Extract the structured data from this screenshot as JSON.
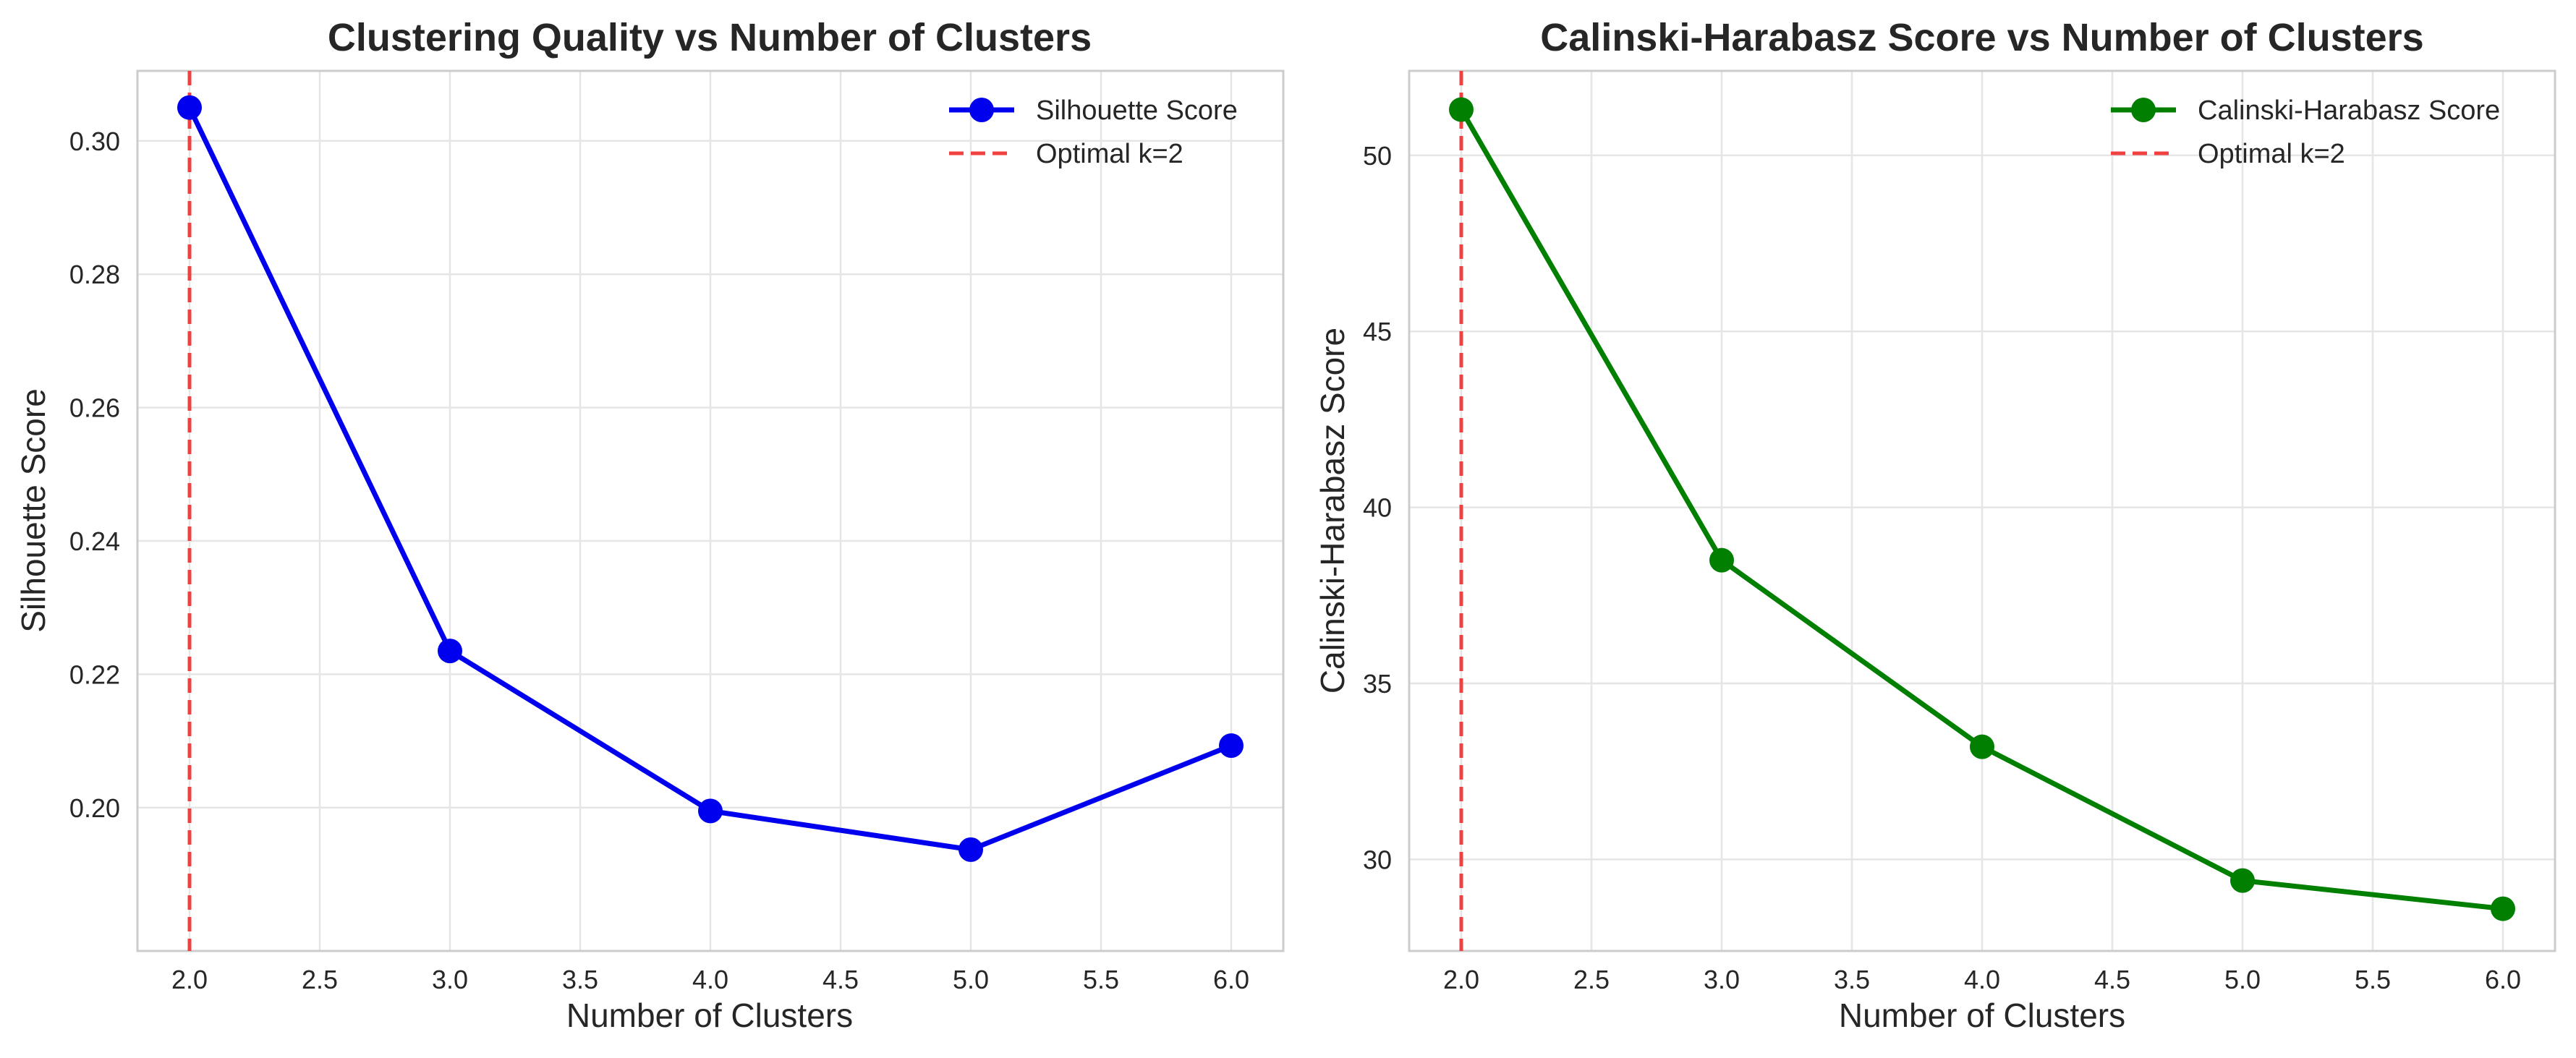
{
  "chart_data": [
    {
      "type": "line",
      "title": "Clustering Quality vs Number of Clusters",
      "xlabel": "Number of Clusters",
      "ylabel": "Silhouette Score",
      "x": [
        2,
        3,
        4,
        5,
        6
      ],
      "xlim": [
        1.8,
        6.2
      ],
      "ylim": [
        0.1785,
        0.3105
      ],
      "xticks": [
        2.0,
        2.5,
        3.0,
        3.5,
        4.0,
        4.5,
        5.0,
        5.5,
        6.0
      ],
      "xtick_labels": [
        "2.0",
        "2.5",
        "3.0",
        "3.5",
        "4.0",
        "4.5",
        "5.0",
        "5.5",
        "6.0"
      ],
      "yticks": [
        0.2,
        0.22,
        0.24,
        0.26,
        0.28,
        0.3
      ],
      "ytick_labels": [
        "0.20",
        "0.22",
        "0.24",
        "0.26",
        "0.28",
        "0.30"
      ],
      "grid": true,
      "legend_position": "top-right",
      "series": [
        {
          "name": "Silhouette Score",
          "values": [
            0.305,
            0.2235,
            0.1995,
            0.1937,
            0.2093
          ],
          "color": "#0000ee",
          "marker": "circle"
        }
      ],
      "vline": {
        "x": 2,
        "label": "Optimal k=2",
        "color": "#f04040",
        "style": "dashed"
      }
    },
    {
      "type": "line",
      "title": "Calinski-Harabasz Score vs Number of Clusters",
      "xlabel": "Number of Clusters",
      "ylabel": "Calinski-Harabasz Score",
      "x": [
        2,
        3,
        4,
        5,
        6
      ],
      "xlim": [
        1.8,
        6.2
      ],
      "ylim": [
        27.4,
        52.4
      ],
      "xticks": [
        2.0,
        2.5,
        3.0,
        3.5,
        4.0,
        4.5,
        5.0,
        5.5,
        6.0
      ],
      "xtick_labels": [
        "2.0",
        "2.5",
        "3.0",
        "3.5",
        "4.0",
        "4.5",
        "5.0",
        "5.5",
        "6.0"
      ],
      "yticks": [
        30,
        35,
        40,
        45,
        50
      ],
      "ytick_labels": [
        "30",
        "35",
        "40",
        "45",
        "50"
      ],
      "grid": true,
      "legend_position": "top-right",
      "series": [
        {
          "name": "Calinski-Harabasz Score",
          "values": [
            51.3,
            38.5,
            33.2,
            29.4,
            28.6
          ],
          "color": "#007f00",
          "marker": "circle"
        }
      ],
      "vline": {
        "x": 2,
        "label": "Optimal k=2",
        "color": "#f04040",
        "style": "dashed"
      }
    }
  ]
}
